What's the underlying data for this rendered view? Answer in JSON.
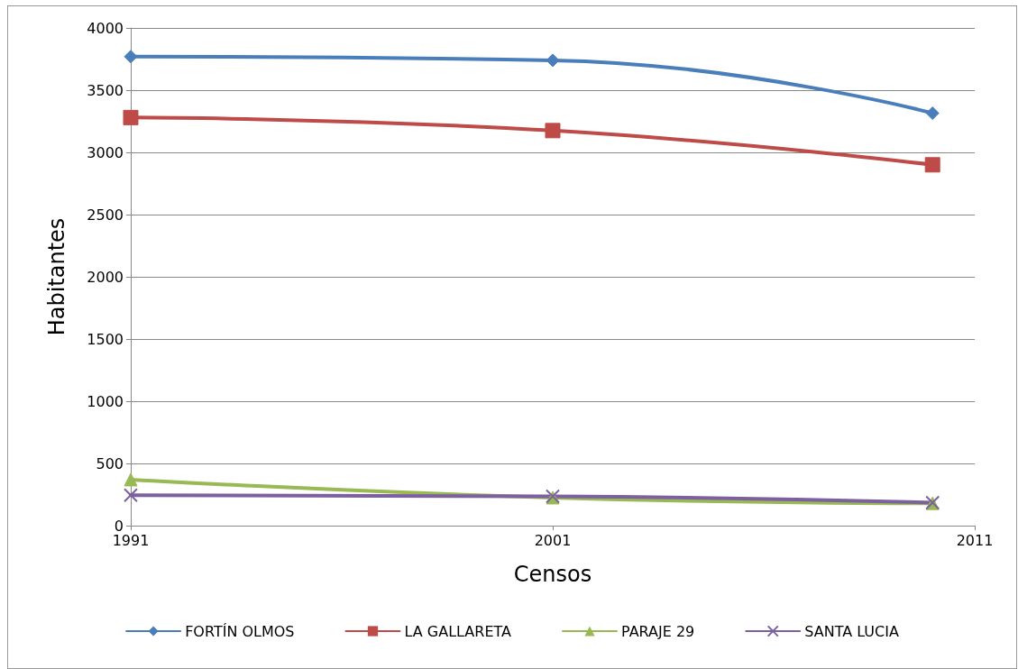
{
  "chart_data": {
    "type": "line",
    "xlabel": "Censos",
    "ylabel": "Habitantes",
    "x": [
      1991,
      2001,
      2010
    ],
    "series": [
      {
        "name": "FORTÍN OLMOS",
        "color": "#4a7ebb",
        "marker": "diamond",
        "values": [
          3770,
          3740,
          3315
        ]
      },
      {
        "name": "LA GALLARETA",
        "color": "#be4b48",
        "marker": "square",
        "values": [
          3280,
          3175,
          2900
        ]
      },
      {
        "name": "PARAJE 29",
        "color": "#98b954",
        "marker": "triangle",
        "values": [
          370,
          225,
          180
        ]
      },
      {
        "name": "SANTA LUCIA",
        "color": "#7d60a0",
        "marker": "cross",
        "values": [
          245,
          235,
          185
        ]
      }
    ],
    "xlim": [
      1991,
      2011
    ],
    "xticks": [
      1991,
      2001,
      2011
    ],
    "ylim": [
      0,
      4000
    ],
    "yticks": [
      0,
      500,
      1000,
      1500,
      2000,
      2500,
      3000,
      3500,
      4000
    ],
    "grid": "y",
    "legend": "bottom",
    "line_style": "solid"
  }
}
